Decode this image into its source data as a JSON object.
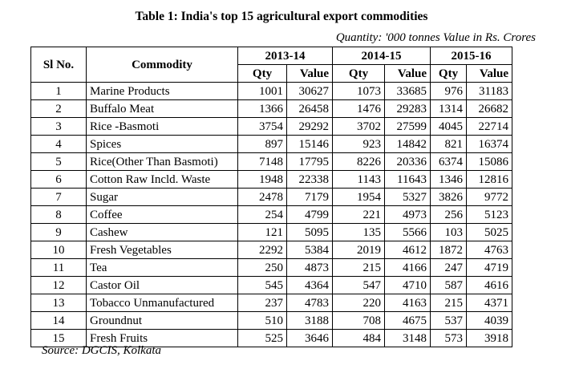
{
  "title": "Table 1: India's top 15 agricultural export commodities",
  "units_note": "Quantity: '000 tonnes Value in Rs. Crores",
  "headers": {
    "sl_no": "Sl No.",
    "commodity": "Commodity",
    "years": [
      "2013-14",
      "2014-15",
      "2015-16"
    ],
    "qty": "Qty",
    "value": "Value"
  },
  "rows": [
    {
      "sl": "1",
      "commodity": "Marine Products",
      "q1": "1001",
      "v1": "30627",
      "q2": "1073",
      "v2": "33685",
      "q3": "976",
      "v3": "31183"
    },
    {
      "sl": "2",
      "commodity": "Buffalo Meat",
      "q1": "1366",
      "v1": "26458",
      "q2": "1476",
      "v2": "29283",
      "q3": "1314",
      "v3": "26682"
    },
    {
      "sl": "3",
      "commodity": "Rice -Basmoti",
      "q1": "3754",
      "v1": "29292",
      "q2": "3702",
      "v2": "27599",
      "q3": "4045",
      "v3": "22714"
    },
    {
      "sl": "4",
      "commodity": "Spices",
      "q1": "897",
      "v1": "15146",
      "q2": "923",
      "v2": "14842",
      "q3": "821",
      "v3": "16374"
    },
    {
      "sl": "5",
      "commodity": "Rice(Other Than Basmoti)",
      "q1": "7148",
      "v1": "17795",
      "q2": "8226",
      "v2": "20336",
      "q3": "6374",
      "v3": "15086"
    },
    {
      "sl": "6",
      "commodity": "Cotton Raw Incld. Waste",
      "q1": "1948",
      "v1": "22338",
      "q2": "1143",
      "v2": "11643",
      "q3": "1346",
      "v3": "12816"
    },
    {
      "sl": "7",
      "commodity": "Sugar",
      "q1": "2478",
      "v1": "7179",
      "q2": "1954",
      "v2": "5327",
      "q3": "3826",
      "v3": "9772"
    },
    {
      "sl": "8",
      "commodity": "Coffee",
      "q1": "254",
      "v1": "4799",
      "q2": "221",
      "v2": "4973",
      "q3": "256",
      "v3": "5123"
    },
    {
      "sl": "9",
      "commodity": "Cashew",
      "q1": "121",
      "v1": "5095",
      "q2": "135",
      "v2": "5566",
      "q3": "103",
      "v3": "5025"
    },
    {
      "sl": "10",
      "commodity": "Fresh Vegetables",
      "q1": "2292",
      "v1": "5384",
      "q2": "2019",
      "v2": "4612",
      "q3": "1872",
      "v3": "4763"
    },
    {
      "sl": "11",
      "commodity": "Tea",
      "q1": "250",
      "v1": "4873",
      "q2": "215",
      "v2": "4166",
      "q3": "247",
      "v3": "4719"
    },
    {
      "sl": "12",
      "commodity": "Castor Oil",
      "q1": "545",
      "v1": "4364",
      "q2": "547",
      "v2": "4710",
      "q3": "587",
      "v3": "4616"
    },
    {
      "sl": "13",
      "commodity": "Tobacco Unmanufactured",
      "q1": "237",
      "v1": "4783",
      "q2": "220",
      "v2": "4163",
      "q3": "215",
      "v3": "4371"
    },
    {
      "sl": "14",
      "commodity": "Groundnut",
      "q1": "510",
      "v1": "3188",
      "q2": "708",
      "v2": "4675",
      "q3": "537",
      "v3": "4039"
    },
    {
      "sl": "15",
      "commodity": "Fresh Fruits",
      "q1": "525",
      "v1": "3646",
      "q2": "484",
      "v2": "3148",
      "q3": "573",
      "v3": "3918"
    }
  ],
  "source": "Source: DGCIS, Kolkata"
}
